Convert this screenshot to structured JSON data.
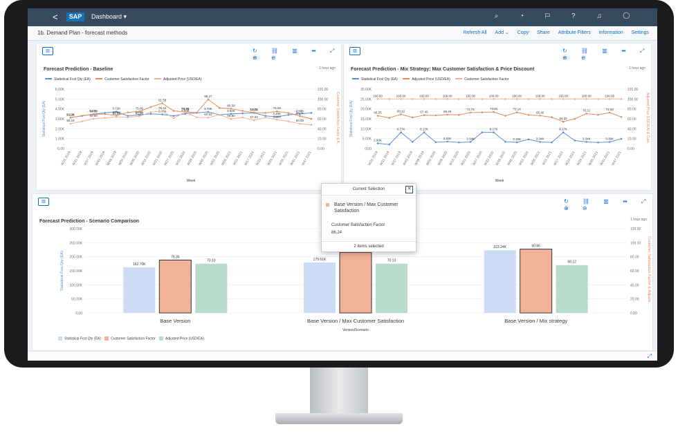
{
  "shell": {
    "back": "<",
    "logo": "SAP",
    "title": "Dashboard ▾",
    "icons": "⌕ ◔ ⚐ ? ♫ ◯"
  },
  "subheader": {
    "title": "1b. Demand Plan - forecast methods",
    "menu": [
      "Refresh All",
      "Add ⌄",
      "Copy",
      "Share",
      "Attribute Filters",
      "Information",
      "Settings"
    ]
  },
  "toolbar_icons": "↻ ⛓ ▥ ⇹ ⤢ ⊕ ⊖",
  "panels": [
    {
      "title": "Forecast Prediction - Baseline",
      "ago": "1 hour ago",
      "legend": [
        {
          "name": "Statistical Fcst Qty (EA)",
          "color": "#5b8fd6"
        },
        {
          "name": "Customer Satisfaction Factor",
          "color": "#e88b57"
        },
        {
          "name": "Adjusted Price (USD/EA)",
          "color": "#f2b297"
        }
      ],
      "xlabel": "Week",
      "ylabel": "Statistical Fcst Qty (EA)",
      "y2label": "Customer Satisfaction Factor & A..."
    },
    {
      "title": "Forecast Prediction - Mix Strategy: Max Customer Satisfaction & Price Discount",
      "ago": "1 hour ago",
      "legend": [
        {
          "name": "Statistical Fcst Qty (EA)",
          "color": "#5b8fd6"
        },
        {
          "name": "Adjusted Price (USD/EA)",
          "color": "#e88b57"
        },
        {
          "name": "Customer Satisfaction Factor",
          "color": "#f2b297"
        }
      ],
      "xlabel": "Week",
      "ylabel": "Statistical Fcst Qty (EA)",
      "y2label": "Adjusted Price (USD/EA) & Cust..."
    },
    {
      "title": "Forecast Prediction - Scenario Comparison",
      "ago": "1 hour ago",
      "xlabel": "Version/Scenario",
      "ylabel": "Statistical Fcst Qty (EA)",
      "y2label": "Customer Satisfaction Factor & Adjuste..."
    }
  ],
  "popover": {
    "title": "Current Selection",
    "close": "✕",
    "item": "Base Version / Max Customer Satisfaction",
    "measure": "Customer Satisfaction Factor",
    "value": "86.24",
    "footer": "2 items selected"
  },
  "chart_data": [
    {
      "type": "line",
      "title": "Forecast Prediction - Baseline",
      "x": [
        "W25 2019",
        "W31 2019",
        "W37 2019",
        "W43 2019",
        "W49 2019",
        "W03 2020",
        "W09 2020",
        "W15 2020",
        "W21 2020",
        "W27 2020",
        "W33 2020",
        "W39 2020",
        "W45 2020",
        "W51 2020",
        "W05 2021",
        "W11 2021",
        "W17 2021",
        "W23 2021",
        "W29 2021",
        "W35 2021",
        "W41 2021",
        "W47 2021"
      ],
      "ylim": [
        0,
        6000
      ],
      "y2lim": [
        0,
        120
      ],
      "yticks": [
        "0.00",
        "1.00K",
        "2.00K",
        "3.00K",
        "4.00K",
        "5.00K",
        "6.00K"
      ],
      "y2ticks": [
        "0.00",
        "20.00",
        "40.00",
        "60.00",
        "80.00",
        "100.00",
        "120.00"
      ],
      "series": [
        {
          "name": "Statistical Fcst Qty (EA)",
          "axis": "left",
          "values": [
            3120,
            3300,
            3480,
            3600,
            3720,
            3300,
            3400,
            3500,
            3450,
            3300,
            3500,
            3600,
            3700,
            3400,
            3500,
            3550,
            3600,
            3300,
            3200,
            3400,
            3500,
            3600
          ]
        },
        {
          "name": "Customer Satisfaction Factor",
          "axis": "right",
          "values": [
            62.34,
            66.25,
            69.12,
            69.58,
            66.66,
            73.04,
            75.0,
            83.87,
            91.58,
            76.09,
            73.78,
            72.42,
            99.27,
            82.0,
            80.58,
            76.09,
            72.76,
            71.93,
            75.08,
            71.84,
            65.71,
            60.0
          ]
        },
        {
          "name": "Adjusted Price (USD/EA)",
          "axis": "right",
          "values": [
            50.18,
            55.0,
            60.0,
            62.0,
            64.08,
            63.04,
            65.0,
            73.62,
            75.42,
            61.58,
            73.06,
            63.07,
            62.53,
            68.07,
            59.8,
            62.91,
            57.04,
            62.87,
            58.0,
            55.0,
            50.0,
            48.0
          ]
        }
      ]
    },
    {
      "type": "line",
      "title": "Forecast Prediction - Mix Strategy: Max Customer Satisfaction & Price Discount",
      "x": [
        "W25 2019",
        "W31 2019",
        "W37 2019",
        "W43 2019",
        "W49 2019",
        "W03 2020",
        "W09 2020",
        "W15 2020",
        "W21 2020",
        "W27 2020",
        "W33 2020",
        "W39 2020",
        "W45 2020",
        "W51 2020",
        "W05 2021",
        "W11 2021",
        "W17 2021",
        "W23 2021",
        "W29 2021",
        "W35 2021",
        "W41 2021",
        "W47 2021"
      ],
      "ylim": [
        0,
        30000
      ],
      "y2lim": [
        0,
        120
      ],
      "yticks": [
        "0.00",
        "5.00K",
        "10.00K",
        "15.00K",
        "20.00K",
        "25.00K",
        "30.00K"
      ],
      "y2ticks": [
        "0.00",
        "20.00",
        "40.00",
        "60.00",
        "80.00",
        "100.00",
        "120.00"
      ],
      "series": [
        {
          "name": "Statistical Fcst Qty (EA)",
          "axis": "left",
          "values": [
            2600,
            2060,
            8170,
            3340,
            8170,
            3190,
            3520,
            3080,
            3340,
            8170,
            8170,
            3450,
            3150,
            4610,
            3340,
            3080,
            8170,
            4020,
            3340,
            3070,
            3300,
            4910
          ]
        },
        {
          "name": "Adjusted Price (USD/EA)",
          "axis": "right",
          "values": [
            66.25,
            62.02,
            69.12,
            62.75,
            67.45,
            66.89,
            68.49,
            67.93,
            72.75,
            73.16,
            73.81,
            66.12,
            73.14,
            67.81,
            66.45,
            63.23,
            54.22,
            60.01,
            70.51,
            68.19,
            72.62,
            63.74
          ]
        },
        {
          "name": "Customer Satisfaction Factor",
          "axis": "right",
          "values": [
            100,
            100,
            100,
            100,
            100,
            100,
            100,
            100,
            100,
            100,
            100,
            100,
            100,
            100,
            100,
            100,
            100,
            100,
            100,
            100,
            100,
            100
          ]
        }
      ]
    },
    {
      "type": "bar",
      "title": "Forecast Prediction - Scenario Comparison",
      "categories": [
        "Base Version",
        "Base Version / Max Customer Satisfaction",
        "Base Version / Mix strategy"
      ],
      "ylim": [
        0,
        300000
      ],
      "y2lim": [
        0,
        120
      ],
      "yticks": [
        "0.00",
        "50.00K",
        "100.00K",
        "150.00K",
        "200.00K",
        "250.00K",
        "300.00K"
      ],
      "y2ticks": [
        "0.00",
        "20.00",
        "40.00",
        "60.00",
        "80.00",
        "100.00",
        "120.00"
      ],
      "series": [
        {
          "name": "Statistical Fcst Qty (EA)",
          "axis": "left",
          "color": "#cddcf6",
          "labels": [
            "162.70K",
            "179.61K",
            "223.24K"
          ],
          "values": [
            162700,
            179610,
            223240
          ]
        },
        {
          "name": "Customer Satisfaction Factor",
          "axis": "right",
          "color": "#f2b297",
          "labels": [
            "75.35",
            "",
            "90.86"
          ],
          "values": [
            75.35,
            86.24,
            90.86
          ]
        },
        {
          "name": "Adjusted Price (USD/EA)",
          "axis": "right",
          "color": "#b7dccb",
          "labels": [
            "70.10",
            "70.13",
            "68.12"
          ],
          "values": [
            70.1,
            70.13,
            68.12
          ]
        }
      ]
    }
  ]
}
